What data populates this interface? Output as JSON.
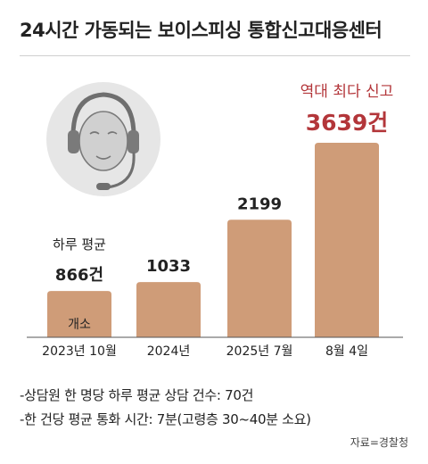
{
  "header": {
    "title": "24시간 가동되는 보이스피싱 통합신고대응센터"
  },
  "illustration": {
    "icon": "headset-agent-icon"
  },
  "chart_data": {
    "type": "bar",
    "categories": [
      "2023년 10월",
      "2024년",
      "2025년 7월",
      "8월 4일"
    ],
    "values": [
      866,
      1033,
      2199,
      3639
    ],
    "value_labels": [
      "866건",
      "1033",
      "2199",
      "3639건"
    ],
    "bar_color": "#cf9c78",
    "highlight_color": "#b3363a",
    "annotations": {
      "first_bar_caption": "하루 평균",
      "first_bar_inner": "개소",
      "last_bar_caption": "역대 최다 신고"
    },
    "ylim": [
      0,
      3639
    ]
  },
  "notes": [
    "-상담원 한 명당 하루 평균 상담 건수: 70건",
    "-한 건당 평균 통화 시간: 7분(고령층 30~40분 소요)"
  ],
  "source": "자료=경찰청"
}
